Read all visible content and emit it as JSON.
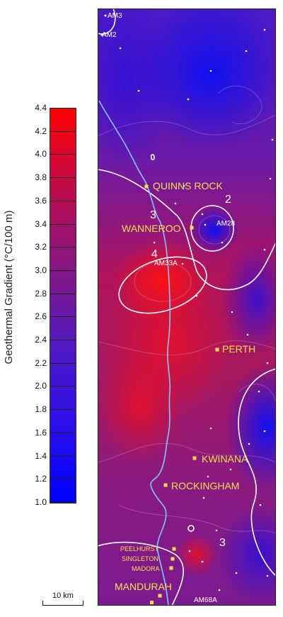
{
  "legend": {
    "title": "Geothermal Gradient  (°C/100 m)",
    "ticks": [
      "4.4",
      "4.2",
      "4.0",
      "3.8",
      "3.6",
      "3.4",
      "3.2",
      "3.0",
      "2.8",
      "2.6",
      "2.4",
      "2.2",
      "2.0",
      "1.8",
      "1.6",
      "1.4",
      "1.2",
      "1.0"
    ],
    "min": 1.0,
    "max": 4.4,
    "colors": [
      "#0000ff",
      "#5018c0",
      "#a01068",
      "#ff0000"
    ]
  },
  "scale_bar": {
    "label": "10 km"
  },
  "map": {
    "colors": {
      "frame": "#222222",
      "coast": "#7ec8ff",
      "contour": "#ffffff",
      "city": "#f5e04a"
    },
    "cities": [
      {
        "name": "QUINNS ROCK"
      },
      {
        "name": "WANNEROO"
      },
      {
        "name": "PERTH"
      },
      {
        "name": "KWINANA"
      },
      {
        "name": "ROCKINGHAM"
      },
      {
        "name": "PEELHURST"
      },
      {
        "name": "SINGLETON"
      },
      {
        "name": "MADORA"
      },
      {
        "name": "MANDURAH"
      }
    ],
    "wells": [
      {
        "name": "AM3"
      },
      {
        "name": "AM2"
      },
      {
        "name": "AM28"
      },
      {
        "name": "AM33A"
      },
      {
        "name": "AM68A"
      }
    ],
    "contour_labels": [
      {
        "text": "2"
      },
      {
        "text": "3"
      },
      {
        "text": "4"
      },
      {
        "text": "3"
      }
    ]
  }
}
